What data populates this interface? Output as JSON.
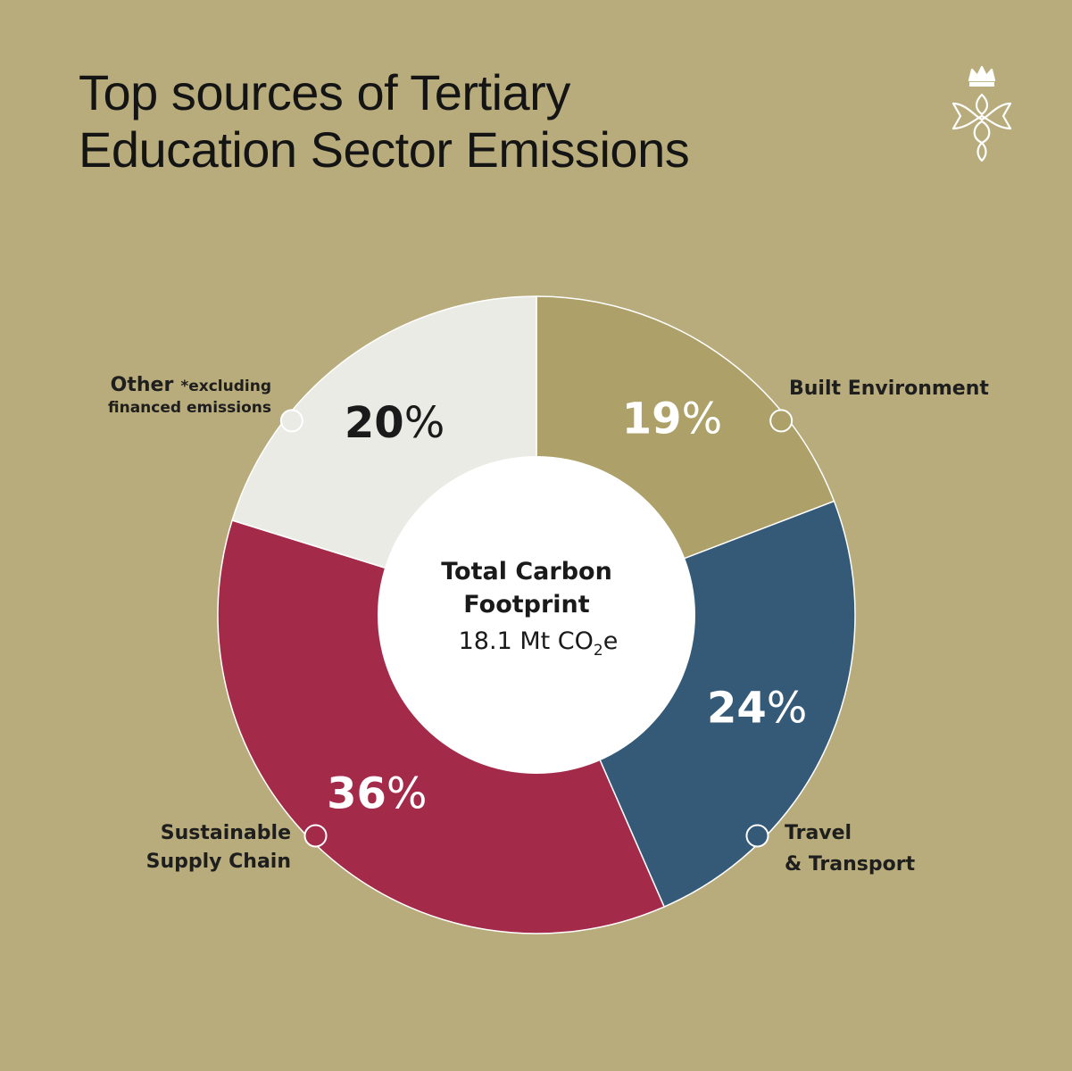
{
  "header": {
    "title_line1": "Top sources of Tertiary",
    "title_line2": "Education Sector Emissions"
  },
  "logo": {
    "icon": "crown-emblem-icon"
  },
  "chart_data": {
    "type": "pie",
    "title": "Top sources of Tertiary Education Sector Emissions",
    "center": {
      "title_line1": "Total Carbon",
      "title_line2": "Footprint",
      "value_prefix": "18.1 Mt CO",
      "value_sub": "2",
      "value_suffix": "e"
    },
    "slices": [
      {
        "label": "Built Environment",
        "value": 19,
        "percent_label": "19",
        "color": "#ada068",
        "text_color": "#ffffff"
      },
      {
        "label": "Travel",
        "label_line2": "& Transport",
        "value": 24,
        "percent_label": "24",
        "color": "#345a78",
        "text_color": "#ffffff"
      },
      {
        "label": "Sustainable",
        "label_line2": "Supply Chain",
        "value": 36,
        "percent_label": "36",
        "color": "#a42a49",
        "text_color": "#ffffff"
      },
      {
        "label": "Other",
        "note": "*excluding",
        "label_line2": "financed emissions",
        "value": 20,
        "percent_label": "20",
        "color": "#ebebe6",
        "text_color": "#1a1a1a"
      }
    ],
    "percent_symbol": "%",
    "legend": "around chart"
  }
}
